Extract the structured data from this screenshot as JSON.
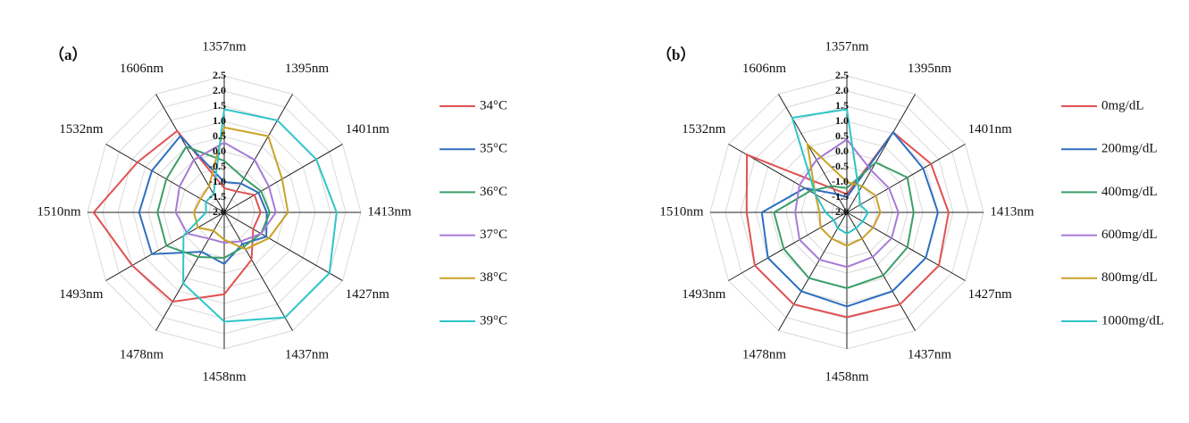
{
  "chart_data": [
    {
      "type": "radar",
      "label": "（a）",
      "categories": [
        "1357nm",
        "1395nm",
        "1401nm",
        "1413nm",
        "1427nm",
        "1437nm",
        "1458nm",
        "1478nm",
        "1493nm",
        "1510nm",
        "1532nm",
        "1606nm"
      ],
      "rlim": [
        -2,
        2.5
      ],
      "rticks": [
        {
          "value": -2,
          "label": "-2.0"
        },
        -1.5,
        {
          "value": -1,
          "label": "-1.0"
        },
        -0.5,
        {
          "value": 0,
          "label": "0.0"
        },
        0.5,
        {
          "value": 1,
          "label": "1.0"
        },
        1.5,
        {
          "value": 2,
          "label": "2.0"
        },
        2.5
      ],
      "grid": true,
      "series": [
        {
          "name": "34°C",
          "color": "#e05252",
          "values": [
            -1.2,
            -1.2,
            -0.85,
            -0.8,
            -0.9,
            -0.2,
            0.7,
            1.4,
            1.5,
            2.3,
            1.3,
            1.1
          ]
        },
        {
          "name": "35°C",
          "color": "#2e6fc0",
          "values": [
            -1.0,
            -0.9,
            -0.7,
            -0.6,
            -0.4,
            -0.8,
            -0.3,
            -0.5,
            0.75,
            0.8,
            0.75,
            0.9
          ]
        },
        {
          "name": "36°C",
          "color": "#3a9e68",
          "values": [
            -0.3,
            -0.7,
            -0.6,
            -0.5,
            -0.6,
            -0.7,
            -0.5,
            -0.3,
            0.2,
            0.2,
            0.2,
            0.5
          ]
        },
        {
          "name": "37°C",
          "color": "#a77ad6",
          "values": [
            0.3,
            0.0,
            -0.3,
            -0.3,
            -0.6,
            -0.9,
            -1.0,
            -1.0,
            -0.6,
            -0.4,
            -0.3,
            0.0
          ]
        },
        {
          "name": "38°C",
          "color": "#c9a227",
          "values": [
            0.8,
            0.9,
            0.2,
            0.1,
            -0.3,
            -0.6,
            -1.1,
            -1.3,
            -1.0,
            -1.0,
            -1.1,
            -1.0
          ]
        },
        {
          "name": "39°C",
          "color": "#2ec4c8",
          "values": [
            1.4,
            1.5,
            1.5,
            1.7,
            2.0,
            2.0,
            1.6,
            0.7,
            -0.45,
            -1.4,
            -1.3,
            -1.3
          ]
        }
      ]
    },
    {
      "type": "radar",
      "label": "（b）",
      "categories": [
        "1357nm",
        "1395nm",
        "1401nm",
        "1413nm",
        "1427nm",
        "1437nm",
        "1458nm",
        "1478nm",
        "1493nm",
        "1510nm",
        "1532nm",
        "1606nm"
      ],
      "rlim": [
        -2,
        2.5
      ],
      "rticks": [
        {
          "value": -2,
          "label": "-2.0"
        },
        -1.5,
        {
          "value": -1,
          "label": "-1.0"
        },
        -0.5,
        {
          "value": 0,
          "label": "0.0"
        },
        0.5,
        {
          "value": 1,
          "label": "1.0"
        },
        1.5,
        {
          "value": 2,
          "label": "2.0"
        },
        2.5
      ],
      "grid": true,
      "series": [
        {
          "name": "0mg/dL",
          "color": "#e05252",
          "values": [
            -1.4,
            1.05,
            1.2,
            1.35,
            1.5,
            1.5,
            1.45,
            1.5,
            1.5,
            1.3,
            1.8,
            -1.1
          ]
        },
        {
          "name": "200mg/dL",
          "color": "#2e6fc0",
          "values": [
            -1.5,
            1.05,
            0.9,
            1.0,
            1.0,
            1.0,
            1.1,
            1.0,
            1.0,
            0.8,
            -0.4,
            -1.3
          ]
        },
        {
          "name": "400mg/dL",
          "color": "#3a9e68",
          "values": [
            -1.2,
            -0.1,
            0.3,
            0.2,
            0.3,
            0.4,
            0.5,
            0.5,
            0.4,
            0.4,
            -0.6,
            -1.0
          ]
        },
        {
          "name": "600mg/dL",
          "color": "#a77ad6",
          "values": [
            0.4,
            -0.4,
            -0.4,
            -0.3,
            -0.3,
            -0.3,
            -0.2,
            -0.2,
            -0.2,
            -0.3,
            -0.2,
            0.0
          ]
        },
        {
          "name": "800mg/dL",
          "color": "#c9a227",
          "values": [
            -1.0,
            -1.0,
            -0.9,
            -0.9,
            -1.0,
            -1.0,
            -0.9,
            -1.0,
            -1.0,
            -1.1,
            -0.8,
            0.6
          ]
        },
        {
          "name": "1000mg/dL",
          "color": "#2ec4c8",
          "values": [
            1.4,
            -1.2,
            -1.5,
            -1.3,
            -1.4,
            -1.4,
            -1.3,
            -1.4,
            -1.5,
            -1.3,
            -0.8,
            1.6
          ]
        }
      ]
    }
  ]
}
